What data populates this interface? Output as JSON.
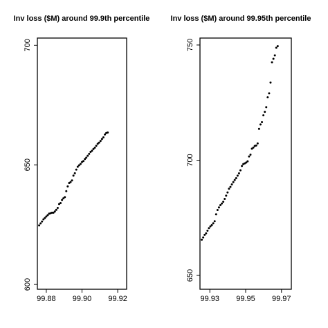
{
  "chart_data": [
    {
      "type": "scatter",
      "title": "Inv loss ($M) around 99.9th percentile",
      "xlabel": "",
      "ylabel": "",
      "xlim": [
        99.875,
        99.925
      ],
      "ylim": [
        598,
        703
      ],
      "xticks": [
        99.88,
        99.9,
        99.92
      ],
      "xtick_labels": [
        "99.88",
        "99.90",
        "99.92"
      ],
      "yticks": [
        600,
        650,
        700
      ],
      "ytick_labels": [
        "600",
        "650",
        "700"
      ],
      "grid": false,
      "points": [
        [
          99.876,
          624.7
        ],
        [
          99.8768,
          625.5
        ],
        [
          99.8776,
          626.3
        ],
        [
          99.8784,
          627.2
        ],
        [
          99.8792,
          627.8
        ],
        [
          99.88,
          628.4
        ],
        [
          99.8808,
          629.0
        ],
        [
          99.8816,
          629.6
        ],
        [
          99.8824,
          629.8
        ],
        [
          99.8832,
          630.0
        ],
        [
          99.884,
          630.0
        ],
        [
          99.8848,
          630.5
        ],
        [
          99.8856,
          631.2
        ],
        [
          99.8864,
          632.0
        ],
        [
          99.8872,
          633.6
        ],
        [
          99.888,
          634.0
        ],
        [
          99.8888,
          635.3
        ],
        [
          99.8896,
          636.0
        ],
        [
          99.8904,
          636.5
        ],
        [
          99.8912,
          639.0
        ],
        [
          99.892,
          641.0
        ],
        [
          99.8928,
          642.4
        ],
        [
          99.8936,
          642.8
        ],
        [
          99.8944,
          643.5
        ],
        [
          99.8952,
          645.5
        ],
        [
          99.896,
          646.5
        ],
        [
          99.8968,
          648.0
        ],
        [
          99.8976,
          649.2
        ],
        [
          99.8984,
          649.8
        ],
        [
          99.8992,
          650.4
        ],
        [
          99.9,
          651.2
        ],
        [
          99.9008,
          651.6
        ],
        [
          99.9016,
          652.4
        ],
        [
          99.9024,
          653.0
        ],
        [
          99.9032,
          653.8
        ],
        [
          99.904,
          654.6
        ],
        [
          99.9048,
          655.4
        ],
        [
          99.9056,
          655.9
        ],
        [
          99.9064,
          656.6
        ],
        [
          99.9072,
          657.2
        ],
        [
          99.908,
          658.0
        ],
        [
          99.9088,
          658.8
        ],
        [
          99.9096,
          659.3
        ],
        [
          99.9104,
          660.0
        ],
        [
          99.9112,
          660.8
        ],
        [
          99.912,
          661.5
        ],
        [
          99.9128,
          662.7
        ],
        [
          99.9136,
          663.3
        ],
        [
          99.9144,
          663.5
        ]
      ]
    },
    {
      "type": "scatter",
      "title": "Inv loss ($M) around 99.95th percentile",
      "xlabel": "",
      "ylabel": "",
      "xlim": [
        99.9245,
        99.9755
      ],
      "ylim": [
        644,
        753
      ],
      "xticks": [
        99.93,
        99.95,
        99.97
      ],
      "xtick_labels": [
        "99.93",
        "99.95",
        "99.97"
      ],
      "yticks": [
        650,
        700,
        750
      ],
      "ytick_labels": [
        "650",
        "700",
        "750"
      ],
      "grid": false,
      "points": [
        [
          99.9255,
          665.5
        ],
        [
          99.9263,
          666.5
        ],
        [
          99.9271,
          667.6
        ],
        [
          99.9279,
          668.3
        ],
        [
          99.9287,
          669.4
        ],
        [
          99.9295,
          670.5
        ],
        [
          99.9303,
          671.3
        ],
        [
          99.9311,
          671.8
        ],
        [
          99.9319,
          672.6
        ],
        [
          99.9327,
          673.5
        ],
        [
          99.9335,
          676.5
        ],
        [
          99.9343,
          678.4
        ],
        [
          99.9351,
          679.5
        ],
        [
          99.9359,
          680.5
        ],
        [
          99.9367,
          681.2
        ],
        [
          99.9375,
          682.0
        ],
        [
          99.9383,
          683.2
        ],
        [
          99.9391,
          684.6
        ],
        [
          99.9399,
          686.0
        ],
        [
          99.9407,
          687.6
        ],
        [
          99.9415,
          688.4
        ],
        [
          99.9423,
          689.5
        ],
        [
          99.9431,
          690.5
        ],
        [
          99.9439,
          691.4
        ],
        [
          99.9447,
          692.2
        ],
        [
          99.9455,
          693.3
        ],
        [
          99.9463,
          694.3
        ],
        [
          99.9471,
          695.6
        ],
        [
          99.9479,
          697.5
        ],
        [
          99.9487,
          698.3
        ],
        [
          99.9495,
          698.6
        ],
        [
          99.9503,
          699.0
        ],
        [
          99.9511,
          699.5
        ],
        [
          99.9519,
          701.6
        ],
        [
          99.9527,
          702.4
        ],
        [
          99.9535,
          705.0
        ],
        [
          99.9543,
          705.5
        ],
        [
          99.9551,
          706.2
        ],
        [
          99.9559,
          706.4
        ],
        [
          99.9567,
          707.3
        ],
        [
          99.9575,
          713.6
        ],
        [
          99.9583,
          715.5
        ],
        [
          99.9591,
          716.5
        ],
        [
          99.9599,
          719.5
        ],
        [
          99.9607,
          721.0
        ],
        [
          99.9615,
          723.0
        ],
        [
          99.9623,
          727.3
        ],
        [
          99.9631,
          729.0
        ],
        [
          99.9639,
          733.7
        ],
        [
          99.9647,
          742.5
        ],
        [
          99.9655,
          744.0
        ],
        [
          99.9663,
          745.5
        ],
        [
          99.9671,
          748.8
        ],
        [
          99.9679,
          749.5
        ]
      ]
    }
  ]
}
